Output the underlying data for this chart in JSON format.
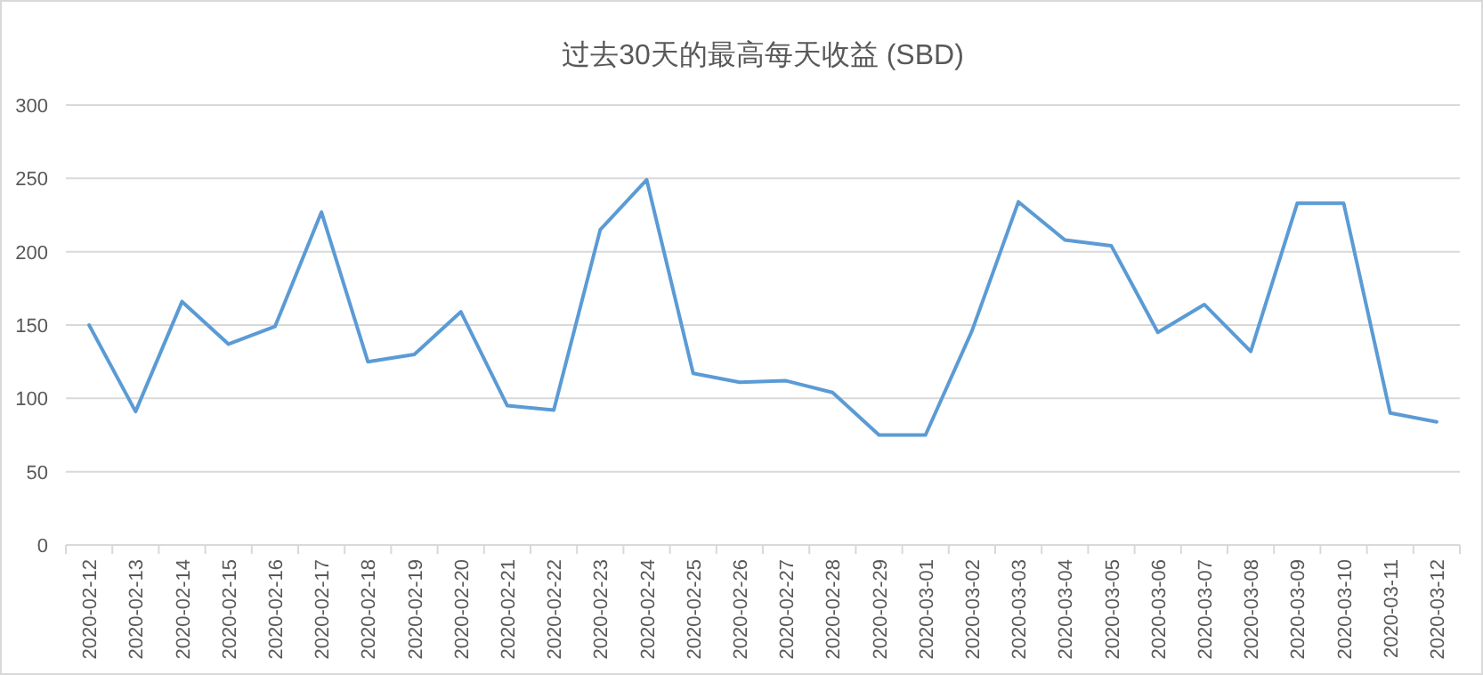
{
  "chart_data": {
    "type": "line",
    "title": "过去30天的最高每天收益 (SBD)",
    "categories": [
      "2020-02-12",
      "2020-02-13",
      "2020-02-14",
      "2020-02-15",
      "2020-02-16",
      "2020-02-17",
      "2020-02-18",
      "2020-02-19",
      "2020-02-20",
      "2020-02-21",
      "2020-02-22",
      "2020-02-23",
      "2020-02-24",
      "2020-02-25",
      "2020-02-26",
      "2020-02-27",
      "2020-02-28",
      "2020-02-29",
      "2020-03-01",
      "2020-03-02",
      "2020-03-03",
      "2020-03-04",
      "2020-03-05",
      "2020-03-06",
      "2020-03-07",
      "2020-03-08",
      "2020-03-09",
      "2020-03-10",
      "2020-03-11",
      "2020-03-12"
    ],
    "values": [
      150,
      91,
      166,
      137,
      149,
      227,
      125,
      130,
      159,
      95,
      92,
      215,
      249,
      117,
      111,
      112,
      104,
      75,
      75,
      146,
      234,
      208,
      204,
      145,
      164,
      132,
      233,
      233,
      90,
      84
    ],
    "color": "#5b9bd5",
    "ylim": [
      0,
      300
    ],
    "yticks": [
      0,
      50,
      100,
      150,
      200,
      250,
      300
    ],
    "grid": "y"
  }
}
